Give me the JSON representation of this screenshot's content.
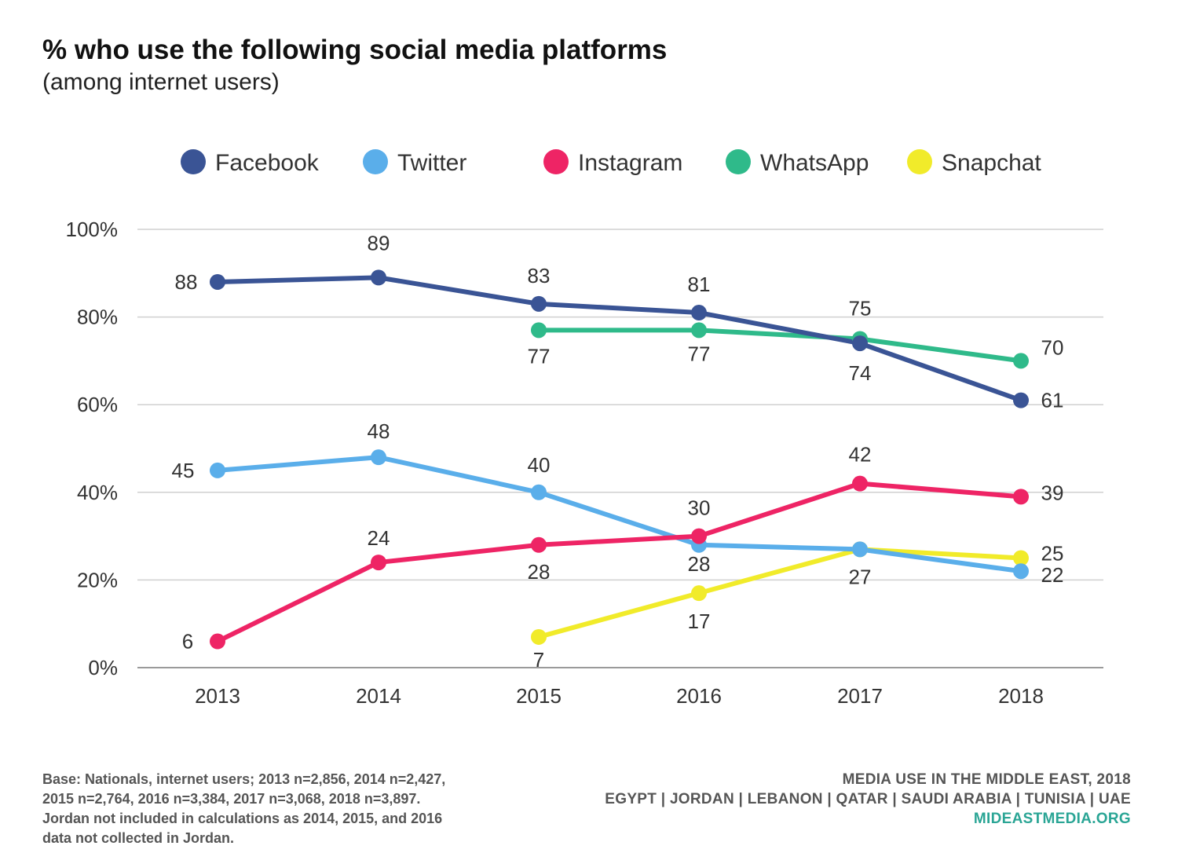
{
  "chart_data": {
    "type": "line",
    "title": "% who use the following social media platforms",
    "subtitle": "(among internet users)",
    "x": [
      "2013",
      "2014",
      "2015",
      "2016",
      "2017",
      "2018"
    ],
    "ylim": [
      0,
      100
    ],
    "yticks": [
      0,
      20,
      40,
      60,
      80,
      100
    ],
    "ytick_labels": [
      "0%",
      "20%",
      "40%",
      "60%",
      "80%",
      "100%"
    ],
    "grid": true,
    "legend_position": "top",
    "series": [
      {
        "name": "Facebook",
        "color": "#3a5495",
        "values": [
          88,
          89,
          83,
          81,
          74,
          61
        ]
      },
      {
        "name": "Twitter",
        "color": "#5aaeea",
        "values": [
          45,
          48,
          40,
          28,
          27,
          22
        ]
      },
      {
        "name": "Instagram",
        "color": "#ee2465",
        "values": [
          6,
          24,
          28,
          30,
          42,
          39
        ]
      },
      {
        "name": "WhatsApp",
        "color": "#2fba8a",
        "values": [
          null,
          null,
          77,
          77,
          75,
          70
        ]
      },
      {
        "name": "Snapchat",
        "color": "#f1eb2a",
        "values": [
          null,
          null,
          7,
          17,
          27,
          25
        ]
      }
    ]
  },
  "footnote": {
    "lines": [
      "Base: Nationals, internet users; 2013 n=2,856, 2014 n=2,427,",
      "2015 n=2,764, 2016 n=3,384, 2017 n=3,068, 2018 n=3,897.",
      "Jordan not included in calculations as 2014, 2015, and 2016",
      "data not collected in Jordan."
    ]
  },
  "branding": {
    "report": "MEDIA USE IN THE MIDDLE EAST, 2018",
    "countries": "EGYPT | JORDAN | LEBANON | QATAR | SAUDI ARABIA | TUNISIA | UAE",
    "site": "MIDEASTMEDIA.ORG"
  }
}
